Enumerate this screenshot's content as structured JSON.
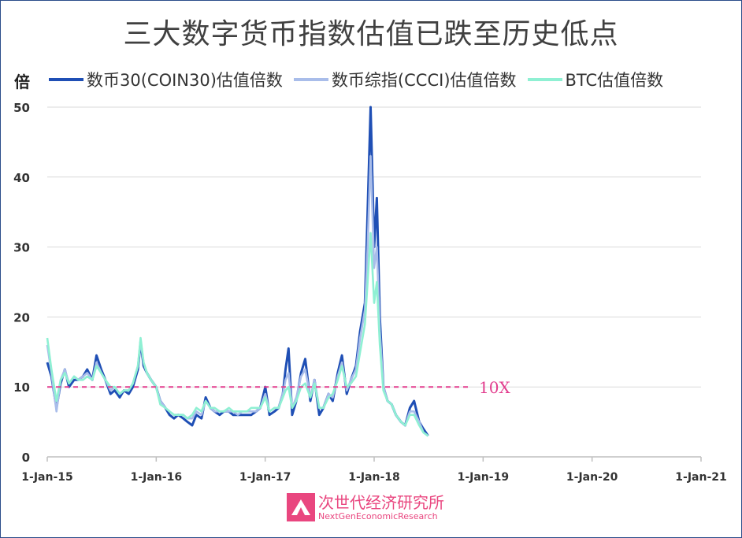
{
  "title": "三大数字货币指数估值已跌至历史低点",
  "colors": {
    "coin30": "#1f4fb5",
    "ccci": "#a9bdea",
    "btc": "#8ff0d3",
    "ref": "#e23d8e",
    "grid": "#d9d9d9",
    "axis": "#bfbfbf"
  },
  "chart_data": {
    "type": "line",
    "ylabel": "倍",
    "ylim": [
      0,
      50
    ],
    "yticks": [
      0,
      10,
      20,
      30,
      40,
      50
    ],
    "xlim": [
      "2015-01-01",
      "2021-01-01"
    ],
    "xticks": [
      "1-Jan-15",
      "1-Jan-16",
      "1-Jan-17",
      "1-Jan-18",
      "1-Jan-19",
      "1-Jan-20",
      "1-Jan-21"
    ],
    "reference_line": {
      "y": 10,
      "label": "10X"
    },
    "legend_position": "top",
    "grid": true,
    "series": [
      {
        "name": "数币30(COIN30)估值倍数",
        "color": "#1f4fb5",
        "x": [
          "2015-01-01",
          "2015-01-15",
          "2015-02-01",
          "2015-02-15",
          "2015-03-01",
          "2015-03-15",
          "2015-04-01",
          "2015-04-15",
          "2015-05-01",
          "2015-05-15",
          "2015-06-01",
          "2015-06-15",
          "2015-07-01",
          "2015-07-15",
          "2015-08-01",
          "2015-08-15",
          "2015-09-01",
          "2015-09-15",
          "2015-10-01",
          "2015-10-15",
          "2015-11-01",
          "2015-11-10",
          "2015-11-20",
          "2015-12-01",
          "2015-12-15",
          "2016-01-01",
          "2016-01-15",
          "2016-02-01",
          "2016-02-15",
          "2016-03-01",
          "2016-03-15",
          "2016-04-01",
          "2016-04-15",
          "2016-05-01",
          "2016-05-15",
          "2016-06-01",
          "2016-06-15",
          "2016-07-01",
          "2016-07-15",
          "2016-08-01",
          "2016-08-15",
          "2016-09-01",
          "2016-09-15",
          "2016-10-01",
          "2016-10-15",
          "2016-11-01",
          "2016-11-15",
          "2016-12-01",
          "2016-12-15",
          "2017-01-01",
          "2017-01-15",
          "2017-02-01",
          "2017-02-15",
          "2017-03-01",
          "2017-03-10",
          "2017-03-20",
          "2017-04-01",
          "2017-04-15",
          "2017-05-01",
          "2017-05-15",
          "2017-06-01",
          "2017-06-15",
          "2017-07-01",
          "2017-07-15",
          "2017-08-01",
          "2017-08-15",
          "2017-09-01",
          "2017-09-15",
          "2017-10-01",
          "2017-10-15",
          "2017-11-01",
          "2017-11-15",
          "2017-12-01",
          "2017-12-10",
          "2017-12-20",
          "2018-01-01",
          "2018-01-10",
          "2018-01-20",
          "2018-02-01",
          "2018-02-15",
          "2018-03-01",
          "2018-03-15",
          "2018-04-01",
          "2018-04-15",
          "2018-05-01",
          "2018-05-15",
          "2018-06-01",
          "2018-06-15",
          "2018-07-01"
        ],
        "values": [
          13.5,
          11.5,
          7,
          10.5,
          12.5,
          10,
          11,
          11,
          11.5,
          12.5,
          11,
          14.5,
          12.5,
          11,
          9,
          9.5,
          8.5,
          9.5,
          9,
          10,
          12.5,
          16.5,
          13,
          12,
          11,
          10,
          8,
          7,
          6,
          5.5,
          6,
          5.5,
          5,
          4.5,
          6,
          5.5,
          8.5,
          7,
          6.5,
          6,
          6.5,
          6.5,
          6,
          6,
          6,
          6,
          6,
          6.5,
          7,
          10,
          6,
          6.5,
          7,
          9,
          12.5,
          15.5,
          6,
          8,
          12,
          14,
          8,
          11,
          6,
          7,
          9,
          8,
          12,
          14.5,
          9,
          11,
          13,
          18,
          22,
          35,
          50,
          30,
          37,
          20,
          10,
          8,
          7.5,
          6,
          5,
          4.5,
          7,
          8,
          5,
          4,
          3
        ]
      },
      {
        "name": "数币综指(CCCI)估值倍数",
        "color": "#a9bdea",
        "x": [
          "2015-01-01",
          "2015-01-15",
          "2015-02-01",
          "2015-02-15",
          "2015-03-01",
          "2015-03-15",
          "2015-04-01",
          "2015-04-15",
          "2015-05-01",
          "2015-05-15",
          "2015-06-01",
          "2015-06-15",
          "2015-07-01",
          "2015-07-15",
          "2015-08-01",
          "2015-08-15",
          "2015-09-01",
          "2015-09-15",
          "2015-10-01",
          "2015-10-15",
          "2015-11-01",
          "2015-11-10",
          "2015-11-20",
          "2015-12-01",
          "2015-12-15",
          "2016-01-01",
          "2016-01-15",
          "2016-02-01",
          "2016-02-15",
          "2016-03-01",
          "2016-03-15",
          "2016-04-01",
          "2016-04-15",
          "2016-05-01",
          "2016-05-15",
          "2016-06-01",
          "2016-06-15",
          "2016-07-01",
          "2016-07-15",
          "2016-08-01",
          "2016-08-15",
          "2016-09-01",
          "2016-09-15",
          "2016-10-01",
          "2016-10-15",
          "2016-11-01",
          "2016-11-15",
          "2016-12-01",
          "2016-12-15",
          "2017-01-01",
          "2017-01-15",
          "2017-02-01",
          "2017-02-15",
          "2017-03-01",
          "2017-03-10",
          "2017-03-20",
          "2017-04-01",
          "2017-04-15",
          "2017-05-01",
          "2017-05-15",
          "2017-06-01",
          "2017-06-15",
          "2017-07-01",
          "2017-07-15",
          "2017-08-01",
          "2017-08-15",
          "2017-09-01",
          "2017-09-15",
          "2017-10-01",
          "2017-10-15",
          "2017-11-01",
          "2017-11-15",
          "2017-12-01",
          "2017-12-10",
          "2017-12-20",
          "2018-01-01",
          "2018-01-10",
          "2018-01-20",
          "2018-02-01",
          "2018-02-15",
          "2018-03-01",
          "2018-03-15",
          "2018-04-01",
          "2018-04-15",
          "2018-05-01",
          "2018-05-15",
          "2018-06-01",
          "2018-06-15",
          "2018-07-01"
        ],
        "values": [
          16,
          12,
          6.5,
          11,
          12.5,
          10.5,
          11.5,
          11,
          11.5,
          12,
          11,
          13.5,
          12,
          11,
          9.5,
          10,
          9,
          9.5,
          9.5,
          10.5,
          13,
          16.5,
          13.5,
          12,
          11,
          10,
          8,
          7,
          6.5,
          6,
          6,
          6,
          5.5,
          5.5,
          6.5,
          6,
          8,
          7,
          6.5,
          6.5,
          6.5,
          6.5,
          6.5,
          6,
          6.5,
          6.5,
          6.5,
          6.5,
          7,
          9,
          6.5,
          7,
          7,
          9,
          11,
          12,
          7,
          8.5,
          11.5,
          12.5,
          8.5,
          11,
          7,
          7,
          9,
          8.5,
          11.5,
          13.5,
          9.5,
          11,
          12.5,
          17,
          21,
          30,
          43,
          27,
          30,
          18,
          10,
          8,
          7.5,
          6,
          5,
          4.5,
          6.5,
          6.5,
          5,
          3.5,
          3
        ]
      },
      {
        "name": "BTC估值倍数",
        "color": "#8ff0d3",
        "x": [
          "2015-01-01",
          "2015-01-15",
          "2015-02-01",
          "2015-02-15",
          "2015-03-01",
          "2015-03-15",
          "2015-04-01",
          "2015-04-15",
          "2015-05-01",
          "2015-05-15",
          "2015-06-01",
          "2015-06-15",
          "2015-07-01",
          "2015-07-15",
          "2015-08-01",
          "2015-08-15",
          "2015-09-01",
          "2015-09-15",
          "2015-10-01",
          "2015-10-15",
          "2015-11-01",
          "2015-11-10",
          "2015-11-20",
          "2015-12-01",
          "2015-12-15",
          "2016-01-01",
          "2016-01-15",
          "2016-02-01",
          "2016-02-15",
          "2016-03-01",
          "2016-03-15",
          "2016-04-01",
          "2016-04-15",
          "2016-05-01",
          "2016-05-15",
          "2016-06-01",
          "2016-06-15",
          "2016-07-01",
          "2016-07-15",
          "2016-08-01",
          "2016-08-15",
          "2016-09-01",
          "2016-09-15",
          "2016-10-01",
          "2016-10-15",
          "2016-11-01",
          "2016-11-15",
          "2016-12-01",
          "2016-12-15",
          "2017-01-01",
          "2017-01-15",
          "2017-02-01",
          "2017-02-15",
          "2017-03-01",
          "2017-03-10",
          "2017-03-20",
          "2017-04-01",
          "2017-04-15",
          "2017-05-01",
          "2017-05-15",
          "2017-06-01",
          "2017-06-15",
          "2017-07-01",
          "2017-07-15",
          "2017-08-01",
          "2017-08-15",
          "2017-09-01",
          "2017-09-15",
          "2017-10-01",
          "2017-10-15",
          "2017-11-01",
          "2017-11-15",
          "2017-12-01",
          "2017-12-10",
          "2017-12-20",
          "2018-01-01",
          "2018-01-10",
          "2018-01-20",
          "2018-02-01",
          "2018-02-15",
          "2018-03-01",
          "2018-03-15",
          "2018-04-01",
          "2018-04-15",
          "2018-05-01",
          "2018-05-15",
          "2018-06-01",
          "2018-06-15",
          "2018-07-01"
        ],
        "values": [
          17,
          12.5,
          8,
          11,
          12,
          10.5,
          11.5,
          11,
          11,
          11.5,
          11,
          13,
          12,
          11,
          10,
          10,
          9,
          9.5,
          9.5,
          10.5,
          13,
          17,
          13.5,
          12,
          11,
          10,
          7.5,
          7,
          6.5,
          6,
          6,
          6,
          5.5,
          6,
          7,
          6.5,
          8,
          7,
          7,
          6.5,
          6.5,
          7,
          6.5,
          6.5,
          6.5,
          6.5,
          7,
          7,
          7,
          8.5,
          6.5,
          7,
          7,
          8.5,
          9.5,
          10,
          7,
          8,
          10,
          10.5,
          8.5,
          10.5,
          7,
          7,
          8.5,
          9,
          11,
          13,
          10,
          10.5,
          11.5,
          15,
          19,
          25,
          32,
          22,
          25,
          16,
          9.5,
          8,
          7.5,
          6,
          5,
          4.5,
          6,
          6,
          4.5,
          3.5,
          3
        ]
      }
    ]
  },
  "logo": {
    "name_cn": "次世代经济研究所",
    "name_en": "NextGenEconomicResearch"
  }
}
